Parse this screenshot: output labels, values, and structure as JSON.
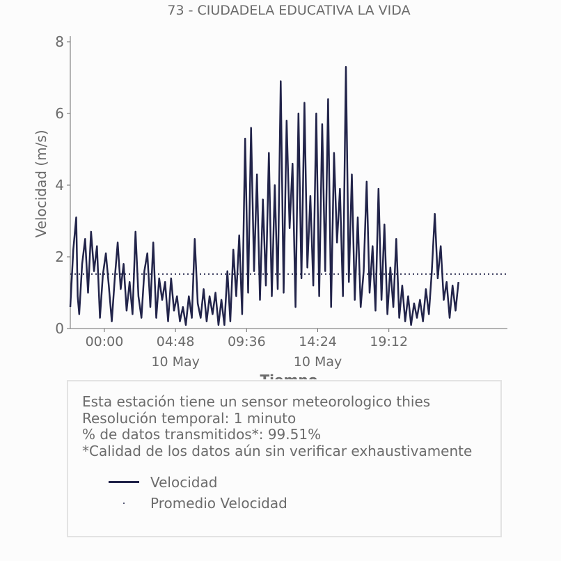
{
  "chart_data": {
    "type": "line",
    "title": "73 - CIUDADELA EDUCATIVA LA VIDA",
    "xlabel": "Tiempo",
    "ylabel": "Velocidad (m/s)",
    "ylim": [
      0,
      8
    ],
    "xlim_hours": [
      -2.3,
      27.2
    ],
    "y_ticks": [
      0,
      2,
      4,
      6,
      8
    ],
    "x_ticks": [
      {
        "hours": 0,
        "label": "00:00",
        "sublabel": ""
      },
      {
        "hours": 4.8,
        "label": "04:48",
        "sublabel": "10 May"
      },
      {
        "hours": 9.6,
        "label": "09:36",
        "sublabel": ""
      },
      {
        "hours": 14.4,
        "label": "14:24",
        "sublabel": "10 May"
      },
      {
        "hours": 19.2,
        "label": "19:12",
        "sublabel": ""
      }
    ],
    "grid": false,
    "series": [
      {
        "name": "Velocidad",
        "style": "line",
        "color": "#22244a",
        "x_hours": [
          -2.3,
          -2.1,
          -1.9,
          -1.8,
          -1.7,
          -1.5,
          -1.3,
          -1.1,
          -0.9,
          -0.7,
          -0.5,
          -0.3,
          -0.1,
          0.1,
          0.3,
          0.5,
          0.7,
          0.9,
          1.1,
          1.3,
          1.5,
          1.7,
          1.9,
          2.1,
          2.3,
          2.5,
          2.7,
          2.9,
          3.1,
          3.3,
          3.5,
          3.7,
          3.9,
          4.1,
          4.3,
          4.5,
          4.7,
          4.9,
          5.1,
          5.3,
          5.5,
          5.7,
          5.9,
          6.1,
          6.3,
          6.5,
          6.7,
          6.9,
          7.1,
          7.3,
          7.5,
          7.7,
          7.9,
          8.1,
          8.3,
          8.5,
          8.7,
          8.9,
          9.1,
          9.3,
          9.5,
          9.7,
          9.9,
          10.1,
          10.3,
          10.5,
          10.7,
          10.9,
          11.1,
          11.3,
          11.5,
          11.7,
          11.9,
          12.1,
          12.3,
          12.5,
          12.7,
          12.9,
          13.1,
          13.3,
          13.5,
          13.7,
          13.9,
          14.1,
          14.3,
          14.5,
          14.7,
          14.9,
          15.1,
          15.3,
          15.5,
          15.7,
          15.9,
          16.1,
          16.3,
          16.5,
          16.7,
          16.9,
          17.1,
          17.3,
          17.5,
          17.7,
          17.9,
          18.1,
          18.3,
          18.5,
          18.7,
          18.9,
          19.1,
          19.3,
          19.5,
          19.7,
          19.9,
          20.1,
          20.3,
          20.5,
          20.7,
          20.9,
          21.1,
          21.3,
          21.5,
          21.7,
          21.9,
          22.1,
          22.3,
          22.5,
          22.7,
          22.9,
          23.1,
          23.3,
          23.5,
          23.7,
          23.9
        ],
        "values": [
          0.6,
          2.2,
          3.1,
          0.9,
          0.4,
          1.8,
          2.5,
          1.0,
          2.7,
          1.6,
          2.3,
          0.3,
          1.5,
          2.1,
          1.2,
          0.2,
          1.4,
          2.4,
          1.1,
          1.8,
          0.5,
          1.3,
          0.4,
          2.7,
          0.9,
          0.3,
          1.6,
          2.1,
          0.6,
          2.4,
          0.3,
          1.4,
          0.8,
          1.3,
          0.2,
          1.4,
          0.5,
          0.9,
          0.2,
          0.6,
          0.1,
          0.9,
          0.3,
          2.5,
          0.7,
          0.3,
          1.1,
          0.2,
          0.9,
          0.4,
          1.0,
          0.1,
          0.8,
          0.1,
          1.6,
          0.2,
          2.2,
          0.9,
          2.6,
          0.4,
          5.3,
          1.0,
          5.6,
          1.6,
          4.3,
          0.8,
          3.6,
          1.2,
          4.9,
          0.9,
          4.0,
          1.1,
          6.9,
          1.0,
          5.8,
          2.8,
          4.6,
          0.6,
          6.0,
          1.4,
          6.3,
          1.7,
          3.7,
          1.2,
          6.0,
          0.9,
          5.7,
          1.6,
          6.4,
          0.6,
          4.9,
          2.4,
          3.9,
          0.9,
          7.3,
          1.3,
          4.3,
          0.8,
          3.1,
          0.6,
          1.6,
          4.1,
          1.0,
          2.3,
          0.5,
          3.9,
          0.8,
          2.9,
          0.4,
          1.7,
          0.6,
          2.5,
          0.3,
          1.2,
          0.2,
          0.9,
          0.1,
          0.7,
          0.3,
          0.8,
          0.2,
          1.1,
          0.4,
          1.6,
          3.2,
          1.4,
          2.3,
          0.8,
          1.3,
          0.3,
          1.2,
          0.5,
          1.3
        ]
      },
      {
        "name": "Promedio Velocidad",
        "style": "dotted",
        "color": "#22244a",
        "value": 1.52
      }
    ]
  },
  "info": {
    "line1": "Esta estación tiene un sensor meteorologico thies",
    "line2": "Resolución temporal: 1 minuto",
    "line3": "% de datos transmitidos*: 99.51%",
    "line4": "*Calidad de los datos aún sin verificar exhaustivamente"
  },
  "legend": {
    "line_label": "Velocidad",
    "dot_label": "Promedio Velocidad"
  }
}
